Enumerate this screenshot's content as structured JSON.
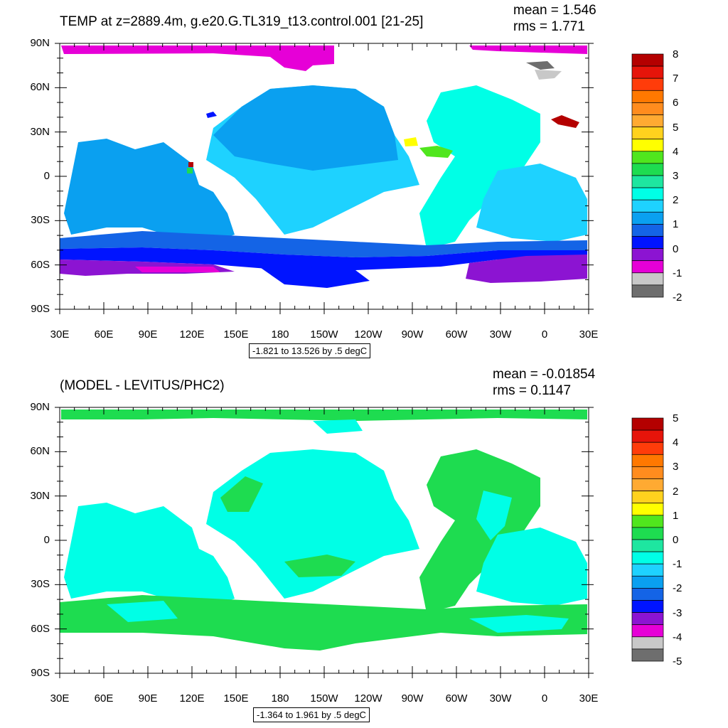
{
  "top": {
    "title": "TEMP at z=2889.4m, g.e20.G.TL319_t13.control.001 [21-25]",
    "mean": "mean = 1.546",
    "rms": "rms = 1.771",
    "range": "-1.821 to 13.526 by .5 degC",
    "colorbar_labels": [
      "8",
      "7",
      "6",
      "5",
      "4",
      "3",
      "2",
      "1",
      "0",
      "-1",
      "-2"
    ]
  },
  "bottom": {
    "title": "(MODEL - LEVITUS/PHC2)",
    "mean": "mean = -0.01854",
    "rms": "rms = 0.1147",
    "range": "-1.364 to 1.961 by .5 degC",
    "colorbar_labels": [
      "5",
      "4",
      "3",
      "2",
      "1",
      "0",
      "-1",
      "-2",
      "-3",
      "-4",
      "-5"
    ]
  },
  "axes": {
    "lat_labels": [
      "90N",
      "60N",
      "30N",
      "0",
      "30S",
      "60S",
      "90S"
    ],
    "lon_labels": [
      "30E",
      "60E",
      "90E",
      "120E",
      "150E",
      "180",
      "150W",
      "120W",
      "90W",
      "60W",
      "30W",
      "0",
      "30E"
    ]
  },
  "colors": {
    "palette": [
      "#6e6e6e",
      "#c8c8c8",
      "#e600d7",
      "#8c14d2",
      "#0014ff",
      "#1464e6",
      "#0aa0f0",
      "#1ed2ff",
      "#00ffe6",
      "#1ee6a0",
      "#1edc50",
      "#50e61e",
      "#ffff00",
      "#ffd21e",
      "#ffaa32",
      "#ff8c1e",
      "#ff7800",
      "#ff3c0a",
      "#e6140a",
      "#b40000"
    ]
  }
}
